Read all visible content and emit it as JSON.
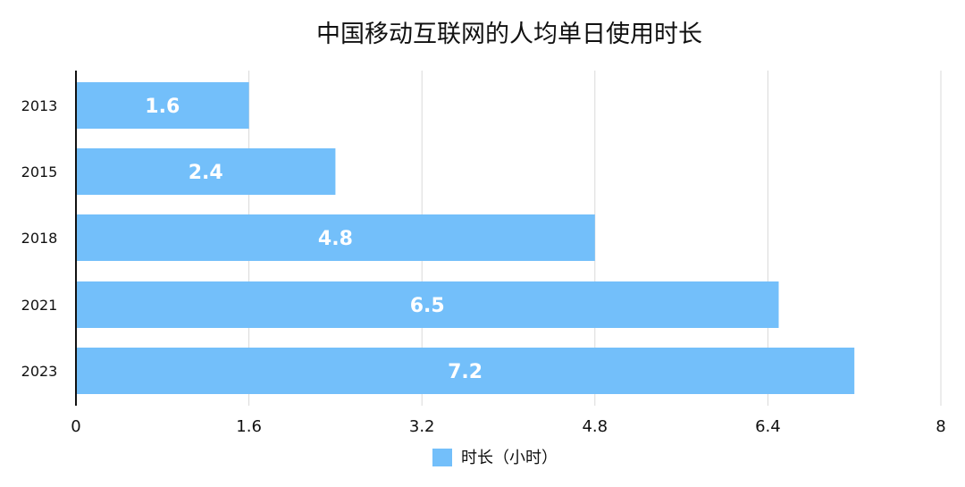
{
  "chart_data": {
    "type": "bar",
    "orientation": "horizontal",
    "title": "中国移动互联网的人均单日使用时长",
    "categories": [
      "2013",
      "2015",
      "2018",
      "2021",
      "2023"
    ],
    "series": [
      {
        "name": "时长（小时）",
        "values": [
          1.6,
          2.4,
          4.8,
          6.5,
          7.2
        ],
        "color": "#73BFFA"
      }
    ],
    "data_labels": [
      "1.6",
      "2.4",
      "4.8",
      "6.5",
      "7.2"
    ],
    "xlim": [
      0,
      8
    ],
    "x_ticks": [
      0,
      1.6,
      3.2,
      4.8,
      6.4,
      8
    ],
    "x_tick_labels": [
      "0",
      "1.6",
      "3.2",
      "4.8",
      "6.4",
      "8"
    ],
    "grid": "vertical",
    "legend_position": "bottom-center",
    "colors": {
      "bar": "#73BFFA",
      "grid": "#d9d9d9",
      "axis": "#111111",
      "text": "#111111",
      "data_label": "#ffffff"
    }
  }
}
